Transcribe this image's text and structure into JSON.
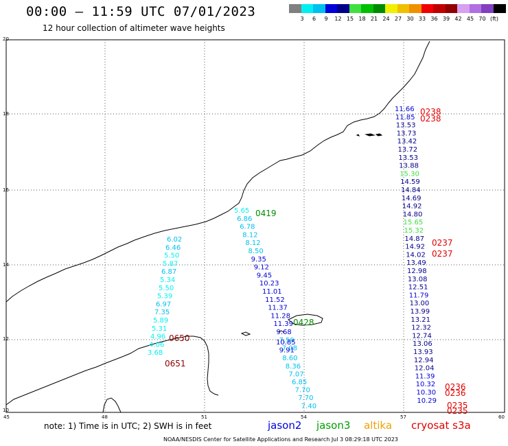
{
  "header": {
    "title": "00:00 – 11:59 UTC 07/01/2023",
    "subtitle": "12 hour collection of altimeter wave heights"
  },
  "colorbar": {
    "colors": [
      "#808080",
      "#00f0f0",
      "#00c0f0",
      "#0000d8",
      "#00008c",
      "#40e040",
      "#00c000",
      "#008c00",
      "#f0f000",
      "#f0c000",
      "#f09000",
      "#f00000",
      "#c00000",
      "#900000",
      "#d8a0f0",
      "#b070e0",
      "#8040c0",
      "#000000"
    ],
    "labels": [
      "3",
      "6",
      "9",
      "12",
      "15",
      "18",
      "21",
      "24",
      "27",
      "30",
      "33",
      "36",
      "39",
      "42",
      "45",
      "70",
      "(ft)"
    ]
  },
  "axes": {
    "y_ticks": [
      "20",
      "18",
      "16",
      "14",
      "12",
      "10"
    ],
    "x_ticks": [
      "45",
      "48",
      "51",
      "54",
      "57",
      "60"
    ]
  },
  "tracks": [
    {
      "name": "track-cyan",
      "values": [
        "6.02",
        "6.46",
        "5.50",
        "5.87",
        "6.87",
        "5.34",
        "5.50",
        "5.39",
        "6.97",
        "7.35",
        "5.89",
        "5.31",
        "4.96",
        "4.06",
        "3.68"
      ]
    },
    {
      "name": "track-dark-blue",
      "values": [
        "5.65",
        "6.86",
        "6.78",
        "8.12",
        "8.12",
        "8.50",
        "9.35",
        "9.12",
        "9.45",
        "10.23",
        "11.01",
        "11.52",
        "11.37",
        "11.28",
        "11.39",
        "9.68",
        "7.59",
        "7.08"
      ]
    },
    {
      "name": "track-lower",
      "values": [
        "10.85",
        "9.91",
        "8.60",
        "8.36",
        "7.07",
        "6.85",
        "7.70",
        "7.70",
        "7.40"
      ]
    },
    {
      "name": "track-east",
      "values": [
        "11.66",
        "11.85",
        "13.53",
        "13.73",
        "13.42",
        "13.72",
        "13.53",
        "13.88",
        "15.30",
        "14.59",
        "14.84",
        "14.69",
        "14.92",
        "14.80",
        "15.65",
        "15.32",
        "14.87",
        "14.92",
        "14.02",
        "13.49",
        "12.98",
        "13.08",
        "12.51",
        "11.79",
        "13.00",
        "13.99",
        "13.21",
        "12.32",
        "12.74",
        "13.06",
        "13.93",
        "12.94",
        "12.04",
        "11.39",
        "10.32",
        "10.30",
        "10.29"
      ]
    }
  ],
  "time_labels": [
    {
      "text": "0238",
      "color": "#e00000"
    },
    {
      "text": "0238",
      "color": "#e00000"
    },
    {
      "text": "0419",
      "color": "#008c00"
    },
    {
      "text": "0237",
      "color": "#e00000"
    },
    {
      "text": "0237",
      "color": "#e00000"
    },
    {
      "text": "0428",
      "color": "#008c00"
    },
    {
      "text": "0650",
      "color": "#8c0000"
    },
    {
      "text": "0651",
      "color": "#8c0000"
    },
    {
      "text": "0236",
      "color": "#e00000"
    },
    {
      "text": "0236",
      "color": "#e00000"
    },
    {
      "text": "0235",
      "color": "#e00000"
    },
    {
      "text": "0235",
      "color": "#e00000"
    }
  ],
  "footer": {
    "note": "note: 1) Time is in UTC; 2) SWH is in feet",
    "satellites": [
      {
        "label": "jason2",
        "color": "#0000e0"
      },
      {
        "label": "jason3",
        "color": "#00a000"
      },
      {
        "label": "altika",
        "color": "#f0a000"
      },
      {
        "label": "cryosat s3a",
        "color": "#e00000"
      }
    ],
    "credit": "NOAA/NESDIS Center for Satellite Applications and Research   Jul  3 08:29:18 UTC 2023"
  }
}
